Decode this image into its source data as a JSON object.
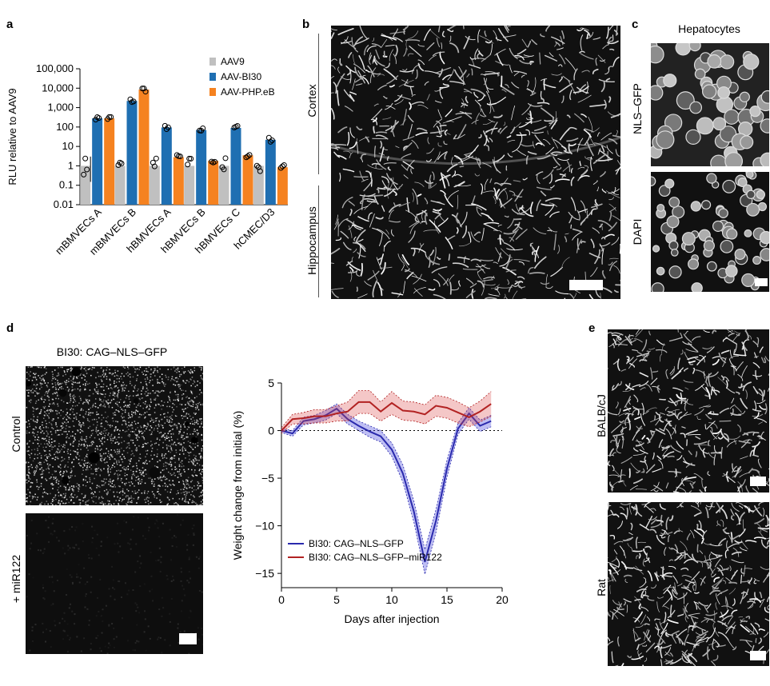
{
  "panels": {
    "a": "a",
    "b": "b",
    "c": "c",
    "d": "d",
    "e": "e"
  },
  "panel_b": {
    "cortex_label": "Cortex",
    "hippocampus_label": "Hippocampus"
  },
  "panel_c": {
    "title": "Hepatocytes",
    "top_label": "NLS–GFP",
    "bottom_label": "DAPI"
  },
  "panel_d": {
    "title": "BI30: CAG–NLS–GFP",
    "top_label": "Control",
    "bottom_label": "+ miR122"
  },
  "panel_e": {
    "top_label": "BALB/cJ",
    "bottom_label": "Rat"
  },
  "colors": {
    "aav9": "#c0c0c0",
    "bi30": "#1f6fb2",
    "phpeb": "#f58220",
    "gfp_line": "#2a2aad",
    "mir_line": "#b22222"
  },
  "chart_data": [
    {
      "type": "bar",
      "panel": "a",
      "ylabel": "RLU relative to AAV9",
      "yscale": "log",
      "ylim": [
        0.01,
        100000
      ],
      "yticks": [
        "0.01",
        "0.1",
        "1",
        "10",
        "100",
        "1,000",
        "10,000",
        "100,000"
      ],
      "yticks_values": [
        0.01,
        0.1,
        1,
        10,
        100,
        1000,
        10000,
        100000
      ],
      "categories": [
        "mBMVECs A",
        "mBMVECs B",
        "hBMVECs A",
        "hBMVECs B",
        "hBMVECs C",
        "hCMEC/D3"
      ],
      "series": [
        {
          "name": "AAV9",
          "values": [
            1,
            1,
            1,
            1,
            1,
            1
          ]
        },
        {
          "name": "AAV-BI30",
          "values": [
            280,
            2200,
            95,
            70,
            90,
            22
          ]
        },
        {
          "name": "AAV-PHP.eB",
          "values": [
            280,
            8500,
            2.8,
            1.8,
            3.5,
            0.85
          ]
        }
      ],
      "legend": [
        "AAV9",
        "AAV-BI30",
        "AAV-PHP.eB"
      ]
    },
    {
      "type": "line",
      "panel": "d",
      "xlabel": "Days after injection",
      "ylabel": "Weight change from initial (%)",
      "xlim": [
        0,
        20
      ],
      "ylim": [
        -16.5,
        5
      ],
      "xticks": [
        "0",
        "5",
        "10",
        "15",
        "20"
      ],
      "xticks_values": [
        0,
        5,
        10,
        15,
        20
      ],
      "yticks": [
        "5",
        "0",
        "−5",
        "−10",
        "−15"
      ],
      "yticks_values": [
        5,
        0,
        -5,
        -10,
        -15
      ],
      "series": [
        {
          "name": "BI30: CAG–NLS–GFP",
          "x": [
            0,
            1,
            2,
            3,
            4,
            5,
            6,
            7,
            8,
            9,
            10,
            11,
            12,
            13,
            14,
            15,
            16,
            17,
            18,
            19
          ],
          "y": [
            0,
            -0.3,
            1,
            1.2,
            1.6,
            2.3,
            1.2,
            0.5,
            -0.1,
            -0.6,
            -2.0,
            -4.5,
            -8.5,
            -13.8,
            -9.5,
            -4.0,
            0.2,
            1.8,
            0.5,
            1.0
          ],
          "err": [
            0.2,
            0.3,
            0.4,
            0.4,
            0.5,
            0.5,
            0.5,
            0.5,
            0.6,
            0.6,
            0.7,
            0.9,
            1.1,
            1.3,
            1.2,
            0.9,
            0.6,
            0.6,
            0.6,
            0.6
          ]
        },
        {
          "name": "BI30: CAG–NLS–GFP–miR122",
          "x": [
            0,
            1,
            2,
            3,
            4,
            5,
            6,
            7,
            8,
            9,
            10,
            11,
            12,
            13,
            14,
            15,
            16,
            17,
            18,
            19
          ],
          "y": [
            0,
            1.2,
            1.3,
            1.5,
            1.5,
            1.8,
            2.0,
            3.0,
            3.0,
            2.0,
            2.9,
            2.1,
            2.0,
            1.7,
            2.6,
            2.4,
            1.9,
            1.4,
            2.0,
            2.8
          ],
          "err": [
            0.3,
            0.5,
            0.6,
            0.7,
            0.7,
            0.8,
            1.0,
            1.2,
            1.2,
            1.0,
            1.2,
            1.0,
            1.0,
            1.0,
            1.1,
            1.1,
            1.1,
            1.0,
            1.1,
            1.3
          ]
        }
      ],
      "legend": [
        "BI30: CAG–NLS–GFP",
        "BI30: CAG–NLS–GFP–miR122"
      ]
    }
  ]
}
